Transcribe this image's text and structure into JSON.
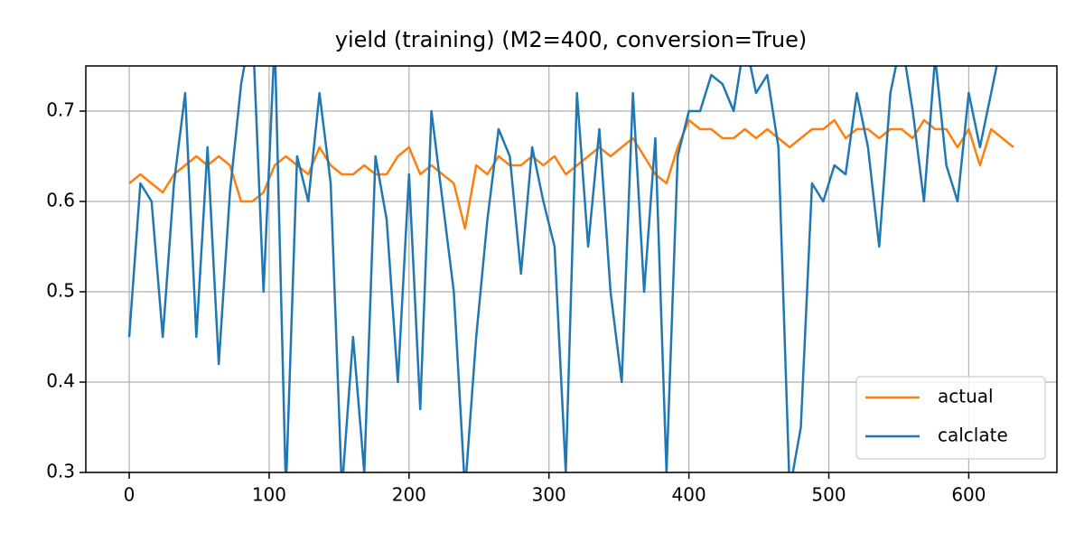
{
  "chart_data": {
    "type": "line",
    "title": "yield (training) (M2=400, conversion=True)",
    "x": [
      0,
      8,
      16,
      24,
      32,
      40,
      48,
      56,
      64,
      72,
      80,
      88,
      96,
      104,
      112,
      120,
      128,
      136,
      144,
      152,
      160,
      168,
      176,
      184,
      192,
      200,
      208,
      216,
      224,
      232,
      240,
      248,
      256,
      264,
      272,
      280,
      288,
      296,
      304,
      312,
      320,
      328,
      336,
      344,
      352,
      360,
      368,
      376,
      384,
      392,
      400,
      408,
      416,
      424,
      432,
      440,
      448,
      456,
      464,
      472,
      480,
      488,
      496,
      504,
      512,
      520,
      528,
      536,
      544,
      552,
      560,
      568,
      576,
      584,
      592,
      600,
      608,
      616,
      624,
      632
    ],
    "series": [
      {
        "name": "actual",
        "color": "#ff7f0e",
        "values": [
          0.62,
          0.63,
          0.62,
          0.61,
          0.63,
          0.64,
          0.65,
          0.64,
          0.65,
          0.64,
          0.6,
          0.6,
          0.61,
          0.64,
          0.65,
          0.64,
          0.63,
          0.66,
          0.64,
          0.63,
          0.63,
          0.64,
          0.63,
          0.63,
          0.65,
          0.66,
          0.63,
          0.64,
          0.63,
          0.62,
          0.57,
          0.64,
          0.63,
          0.65,
          0.64,
          0.64,
          0.65,
          0.64,
          0.65,
          0.63,
          0.64,
          0.65,
          0.66,
          0.65,
          0.66,
          0.67,
          0.65,
          0.63,
          0.62,
          0.66,
          0.69,
          0.68,
          0.68,
          0.67,
          0.67,
          0.68,
          0.67,
          0.68,
          0.67,
          0.66,
          0.67,
          0.68,
          0.68,
          0.69,
          0.67,
          0.68,
          0.68,
          0.67,
          0.68,
          0.68,
          0.67,
          0.69,
          0.68,
          0.68,
          0.66,
          0.68,
          0.64,
          0.68,
          0.67,
          0.66
        ]
      },
      {
        "name": "calclate",
        "color": "#1f77b4",
        "values": [
          0.45,
          0.62,
          0.6,
          0.45,
          0.62,
          0.72,
          0.45,
          0.66,
          0.42,
          0.61,
          0.73,
          0.8,
          0.5,
          0.78,
          0.28,
          0.65,
          0.6,
          0.72,
          0.62,
          0.28,
          0.45,
          0.3,
          0.65,
          0.58,
          0.4,
          0.63,
          0.37,
          0.7,
          0.6,
          0.5,
          0.28,
          0.45,
          0.58,
          0.68,
          0.65,
          0.52,
          0.66,
          0.6,
          0.55,
          0.3,
          0.72,
          0.55,
          0.68,
          0.5,
          0.4,
          0.72,
          0.5,
          0.67,
          0.3,
          0.65,
          0.7,
          0.7,
          0.74,
          0.73,
          0.7,
          0.78,
          0.72,
          0.74,
          0.66,
          0.28,
          0.35,
          0.62,
          0.6,
          0.64,
          0.63,
          0.72,
          0.66,
          0.55,
          0.72,
          0.78,
          0.7,
          0.6,
          0.76,
          0.64,
          0.6,
          0.72,
          0.66,
          0.72,
          0.78,
          0.78
        ]
      }
    ],
    "xlim": [
      -31,
      663
    ],
    "ylim": [
      0.3,
      0.75
    ],
    "xticks": [
      0,
      100,
      200,
      300,
      400,
      500,
      600
    ],
    "yticks": [
      0.3,
      0.4,
      0.5,
      0.6,
      0.7
    ],
    "grid": true,
    "legend": "lower right"
  }
}
